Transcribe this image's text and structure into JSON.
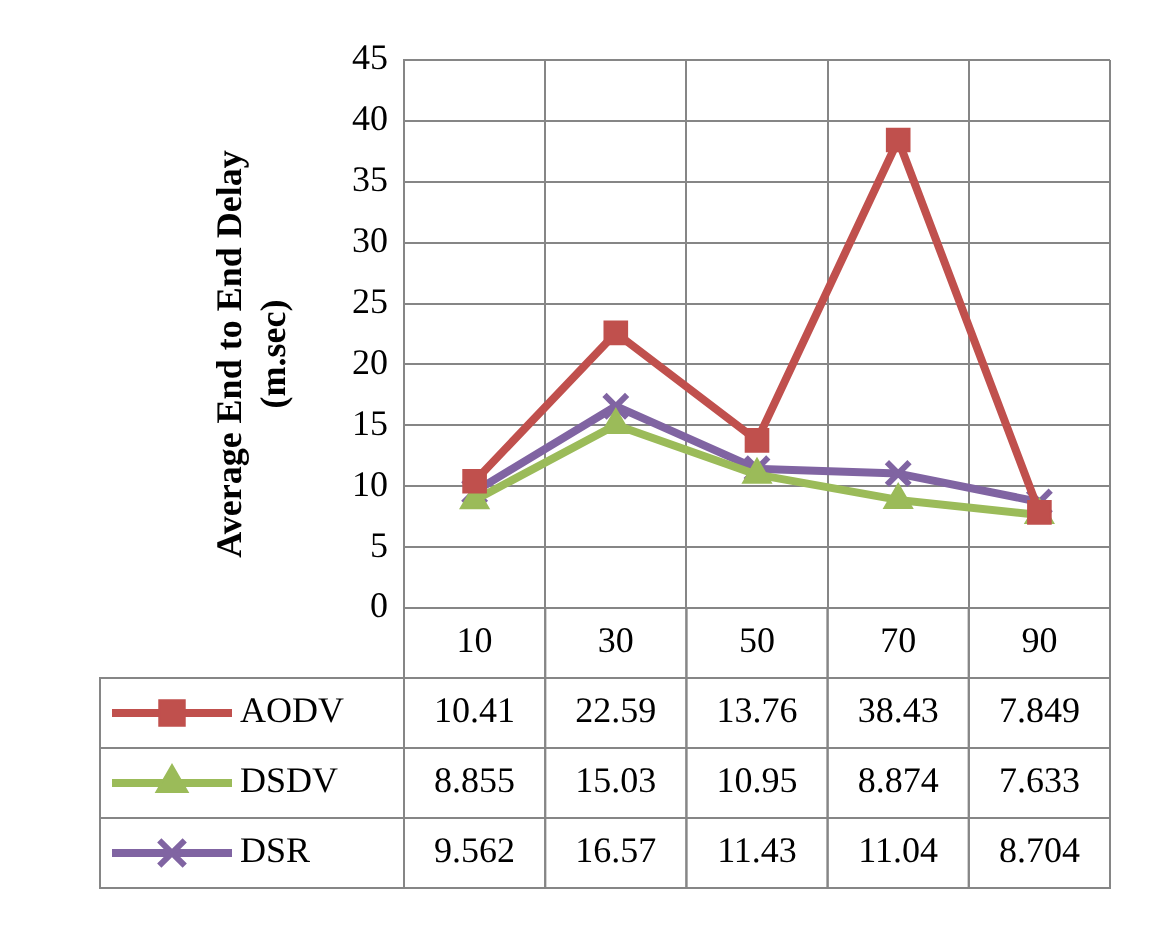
{
  "chart_data": {
    "type": "line",
    "ylabel": "Average End to End Delay (m.sec)",
    "categories": [
      "10",
      "30",
      "50",
      "70",
      "90"
    ],
    "series": [
      {
        "name": "AODV",
        "color": "#c0504d",
        "marker": "square",
        "values": [
          10.41,
          22.59,
          13.76,
          38.43,
          7.849
        ]
      },
      {
        "name": "DSDV",
        "color": "#9bbb59",
        "marker": "triangle",
        "values": [
          8.855,
          15.03,
          10.95,
          8.874,
          7.633
        ]
      },
      {
        "name": "DSR",
        "color": "#8064a2",
        "marker": "cross",
        "values": [
          9.562,
          16.57,
          11.43,
          11.04,
          8.704
        ]
      }
    ],
    "ylim": [
      0,
      45
    ],
    "yticks": [
      0,
      5,
      10,
      15,
      20,
      25,
      30,
      35,
      40,
      45
    ],
    "grid": true,
    "legend": "bottom",
    "data_labels": true
  }
}
